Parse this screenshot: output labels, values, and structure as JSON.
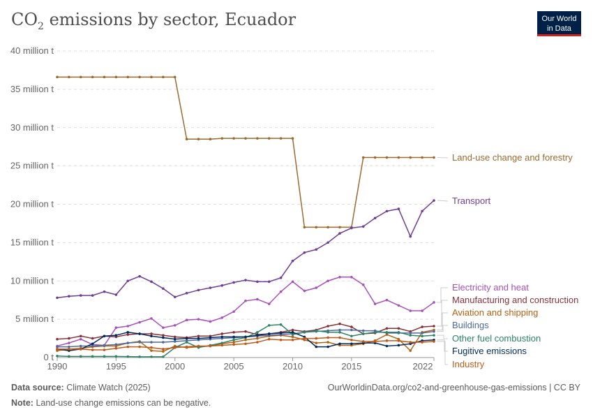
{
  "header": {
    "title": "CO",
    "title_sub": "2",
    "title_rest": " emissions by sector, Ecuador",
    "logo_line1": "Our World",
    "logo_line2": "in Data"
  },
  "footer": {
    "source_label": "Data source:",
    "source": "Climate Watch (2025)",
    "url": "OurWorldinData.org/co2-and-greenhouse-gas-emissions | CC BY",
    "note_label": "Note:",
    "note": "Land-use change emissions can be negative."
  },
  "chart_data": {
    "type": "line",
    "title": "CO₂ emissions by sector, Ecuador",
    "xlabel": "",
    "ylabel": "",
    "x": [
      1990,
      1991,
      1992,
      1993,
      1994,
      1995,
      1996,
      1997,
      1998,
      1999,
      2000,
      2001,
      2002,
      2003,
      2004,
      2005,
      2006,
      2007,
      2008,
      2009,
      2010,
      2011,
      2012,
      2013,
      2014,
      2015,
      2016,
      2017,
      2018,
      2019,
      2020,
      2021,
      2022
    ],
    "xticks": [
      "1990",
      "1995",
      "2000",
      "2005",
      "2010",
      "2015",
      "2022"
    ],
    "yticks": [
      "0 t",
      "5 million t",
      "10 million t",
      "15 million t",
      "20 million t",
      "25 million t",
      "30 million t",
      "35 million t",
      "40 million t"
    ],
    "ylim": [
      0,
      40000000
    ],
    "grid": "horizontal dashed",
    "legend": "right, inline labels",
    "unit": "million t",
    "series": [
      {
        "name": "Land-use change and forestry",
        "color": "#9b6a2e",
        "values": [
          36.6,
          36.6,
          36.6,
          36.6,
          36.6,
          36.6,
          36.6,
          36.6,
          36.6,
          36.6,
          36.6,
          28.5,
          28.5,
          28.5,
          28.6,
          28.6,
          28.6,
          28.6,
          28.6,
          28.6,
          28.6,
          17.0,
          17.0,
          17.0,
          17.0,
          17.0,
          26.1,
          26.1,
          26.1,
          26.1,
          26.1,
          26.1,
          26.1
        ]
      },
      {
        "name": "Transport",
        "color": "#6d3e91",
        "values": [
          7.8,
          8.0,
          8.1,
          8.1,
          8.6,
          8.2,
          10.0,
          10.6,
          9.9,
          9.0,
          7.9,
          8.4,
          8.8,
          9.1,
          9.4,
          9.8,
          10.1,
          9.9,
          9.9,
          10.4,
          12.6,
          13.7,
          14.1,
          15.0,
          16.2,
          16.9,
          17.1,
          18.2,
          19.1,
          19.4,
          15.8,
          19.1,
          20.5
        ]
      },
      {
        "name": "Electricity and heat",
        "color": "#a652ba",
        "values": [
          1.5,
          1.9,
          2.4,
          1.7,
          1.6,
          3.9,
          4.1,
          4.6,
          5.1,
          3.9,
          4.2,
          4.9,
          5.0,
          4.7,
          5.2,
          6.0,
          7.4,
          7.6,
          7.0,
          8.6,
          9.9,
          8.7,
          9.1,
          10.0,
          10.5,
          10.5,
          9.5,
          7.0,
          7.5,
          6.8,
          6.1,
          6.1,
          7.2
        ]
      },
      {
        "name": "Manufacturing and construction",
        "color": "#883039",
        "values": [
          2.4,
          2.5,
          2.8,
          2.5,
          2.8,
          2.7,
          3.0,
          3.1,
          3.1,
          2.9,
          2.7,
          2.6,
          2.8,
          2.8,
          3.1,
          3.3,
          3.4,
          3.0,
          3.1,
          3.3,
          3.6,
          3.4,
          3.6,
          4.1,
          4.4,
          4.0,
          3.1,
          3.2,
          3.8,
          3.8,
          3.4,
          4.0,
          4.1
        ]
      },
      {
        "name": "Aviation and shipping",
        "color": "#b16214",
        "values": [
          0.9,
          1.1,
          1.2,
          1.4,
          1.5,
          1.5,
          1.9,
          2.1,
          0.9,
          0.8,
          1.5,
          1.3,
          1.4,
          1.5,
          1.8,
          2.0,
          2.3,
          2.5,
          2.8,
          2.9,
          2.7,
          2.3,
          1.9,
          2.0,
          1.6,
          1.6,
          1.8,
          2.2,
          3.0,
          2.4,
          0.9,
          3.3,
          3.6
        ]
      },
      {
        "name": "Buildings",
        "color": "#4c6a9c",
        "values": [
          1.4,
          1.4,
          1.5,
          1.5,
          1.6,
          1.7,
          1.9,
          2.0,
          2.0,
          2.0,
          2.1,
          2.2,
          2.3,
          2.4,
          2.5,
          2.6,
          2.7,
          2.8,
          2.9,
          3.0,
          3.1,
          3.3,
          3.4,
          3.5,
          3.6,
          3.6,
          3.5,
          3.5,
          3.2,
          3.2,
          3.2,
          3.2,
          3.4
        ]
      },
      {
        "name": "Other fuel combustion",
        "color": "#2c8465",
        "values": [
          0.2,
          0.15,
          0.15,
          0.15,
          0.15,
          0.15,
          0.12,
          0.1,
          0.1,
          0.1,
          1.3,
          2.0,
          1.3,
          1.6,
          1.9,
          2.3,
          2.6,
          3.3,
          4.2,
          4.3,
          3.0,
          3.3,
          3.5,
          3.3,
          3.3,
          2.8,
          3.1,
          3.3,
          3.3,
          3.3,
          2.9,
          2.8,
          2.9
        ]
      },
      {
        "name": "Fugitive emissions",
        "color": "#00295b",
        "values": [
          1.1,
          0.9,
          1.1,
          1.8,
          2.8,
          2.9,
          3.3,
          3.1,
          2.8,
          2.6,
          2.4,
          2.5,
          2.5,
          2.6,
          2.7,
          2.7,
          2.7,
          2.9,
          3.1,
          3.2,
          3.3,
          2.7,
          1.4,
          1.4,
          1.8,
          1.8,
          1.9,
          1.9,
          1.5,
          1.6,
          1.8,
          2.2,
          2.3
        ]
      },
      {
        "name": "Industry",
        "color": "#c05917",
        "values": [
          1.1,
          1.1,
          1.1,
          1.0,
          1.0,
          1.2,
          1.4,
          1.4,
          1.3,
          1.1,
          1.3,
          1.4,
          1.5,
          1.5,
          1.6,
          1.7,
          1.8,
          2.0,
          2.4,
          2.3,
          2.3,
          2.5,
          2.5,
          2.6,
          2.6,
          2.3,
          2.1,
          2.1,
          2.2,
          2.2,
          2.0,
          2.0,
          2.1
        ]
      }
    ]
  }
}
